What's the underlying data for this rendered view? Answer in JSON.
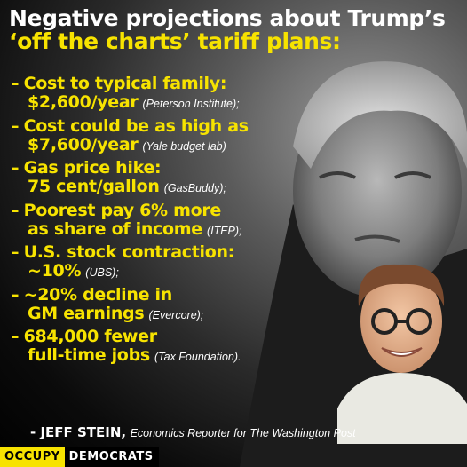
{
  "headline": {
    "line1": "Negative projections about Trump’s",
    "line2": "‘off the charts’ tariff plans:"
  },
  "items": [
    {
      "dash": "–",
      "line1": "Cost to typical family:",
      "line2": "$2,600/year",
      "source": "(Peterson Institute);"
    },
    {
      "dash": "–",
      "line1": "Cost could be as high as",
      "line2": "$7,600/year",
      "source": "(Yale budget lab)"
    },
    {
      "dash": "–",
      "line1": "Gas price hike:",
      "line2": "75 cent/gallon",
      "source": "(GasBuddy);"
    },
    {
      "dash": "–",
      "line1": "Poorest pay 6% more",
      "line2": "as share of income",
      "source": "(ITEP);"
    },
    {
      "dash": "–",
      "line1": "U.S. stock contraction:",
      "line2": "~10%",
      "source": "(UBS);"
    },
    {
      "dash": "–",
      "line1": "~20% decline in",
      "line2": "GM earnings",
      "source": "(Evercore);"
    },
    {
      "dash": "–",
      "line1": "684,000 fewer",
      "line2": "full-time jobs",
      "source": "(Tax Foundation)."
    }
  ],
  "attribution": {
    "name": "- JEFF STEIN,",
    "description": "Economics Reporter for The Washington Post"
  },
  "brand": {
    "part1": "OCCUPY",
    "part2": "DEMOCRATS"
  },
  "colors": {
    "accent": "#f7e300",
    "text": "#ffffff",
    "background": "#000000"
  }
}
